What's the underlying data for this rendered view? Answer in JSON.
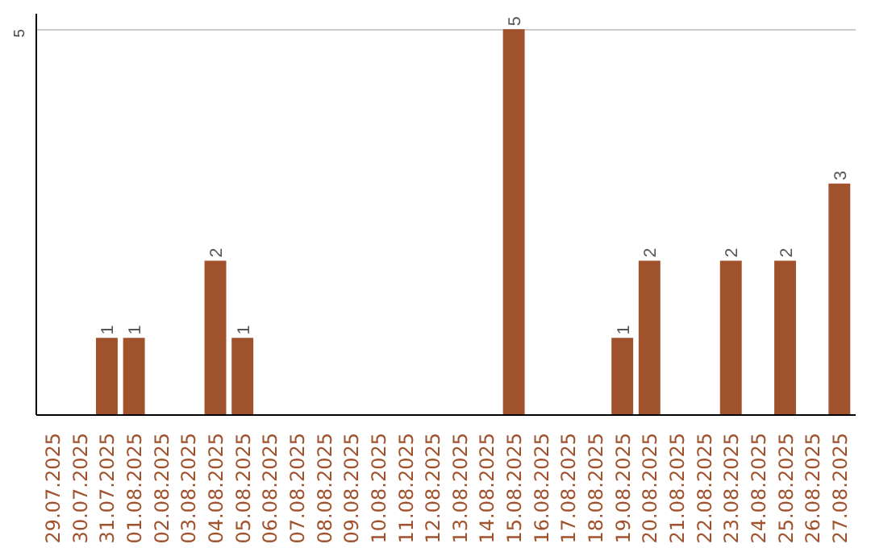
{
  "chart_data": {
    "type": "bar",
    "categories": [
      "29.07.2025",
      "30.07.2025",
      "31.07.2025",
      "01.08.2025",
      "02.08.2025",
      "03.08.2025",
      "04.08.2025",
      "05.08.2025",
      "06.08.2025",
      "07.08.2025",
      "08.08.2025",
      "09.08.2025",
      "10.08.2025",
      "11.08.2025",
      "12.08.2025",
      "13.08.2025",
      "14.08.2025",
      "15.08.2025",
      "16.08.2025",
      "17.08.2025",
      "18.08.2025",
      "19.08.2025",
      "20.08.2025",
      "21.08.2025",
      "22.08.2025",
      "23.08.2025",
      "24.08.2025",
      "25.08.2025",
      "26.08.2025",
      "27.08.2025"
    ],
    "values": [
      0,
      0,
      1,
      1,
      0,
      0,
      2,
      1,
      0,
      0,
      0,
      0,
      0,
      0,
      0,
      0,
      0,
      5,
      0,
      0,
      0,
      1,
      2,
      0,
      0,
      2,
      0,
      2,
      0,
      3
    ],
    "value_labels": [
      null,
      null,
      "1",
      "1",
      null,
      null,
      "2",
      "1",
      null,
      null,
      null,
      null,
      null,
      null,
      null,
      null,
      null,
      "5",
      null,
      null,
      null,
      "1",
      "2",
      null,
      null,
      "2",
      null,
      "2",
      null,
      "3"
    ],
    "color": "#a0522d",
    "ylim": [
      0,
      5.2
    ],
    "yticks": [
      5
    ],
    "grid": "y"
  }
}
